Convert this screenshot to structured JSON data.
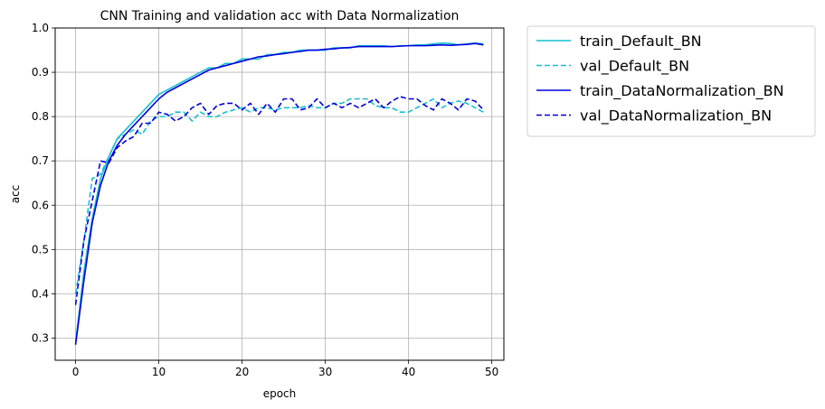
{
  "chart_data": {
    "type": "line",
    "title": "CNN Training and validation acc with Data Normalization",
    "xlabel": "epoch",
    "ylabel": "acc",
    "xlim": [
      -2.45,
      51.45
    ],
    "ylim": [
      0.25,
      1.0
    ],
    "xticks": [
      0,
      10,
      20,
      30,
      40,
      50
    ],
    "yticks": [
      0.3,
      0.4,
      0.5,
      0.6,
      0.7,
      0.8,
      0.9,
      1.0
    ],
    "xtick_labels": [
      "0",
      "10",
      "20",
      "30",
      "40",
      "50"
    ],
    "ytick_labels": [
      "0.3",
      "0.4",
      "0.5",
      "0.6",
      "0.7",
      "0.8",
      "0.9",
      "1.0"
    ],
    "grid": true,
    "legend_placement": "outside-upper-right",
    "x": [
      0,
      1,
      2,
      3,
      4,
      5,
      6,
      7,
      8,
      9,
      10,
      11,
      12,
      13,
      14,
      15,
      16,
      17,
      18,
      19,
      20,
      21,
      22,
      23,
      24,
      25,
      26,
      27,
      28,
      29,
      30,
      31,
      32,
      33,
      34,
      35,
      36,
      37,
      38,
      39,
      40,
      41,
      42,
      43,
      44,
      45,
      46,
      47,
      48,
      49
    ],
    "series": [
      {
        "name": "train_Default_BN",
        "color": "#17becf",
        "dash": "solid",
        "values": [
          0.29,
          0.45,
          0.57,
          0.66,
          0.71,
          0.75,
          0.77,
          0.79,
          0.81,
          0.83,
          0.85,
          0.86,
          0.87,
          0.88,
          0.89,
          0.9,
          0.91,
          0.91,
          0.92,
          0.92,
          0.93,
          0.93,
          0.93,
          0.94,
          0.94,
          0.945,
          0.945,
          0.95,
          0.95,
          0.95,
          0.95,
          0.955,
          0.955,
          0.955,
          0.96,
          0.96,
          0.96,
          0.96,
          0.958,
          0.96,
          0.96,
          0.962,
          0.962,
          0.964,
          0.966,
          0.965,
          0.962,
          0.964,
          0.966,
          0.964
        ]
      },
      {
        "name": "val_Default_BN",
        "color": "#17becf",
        "dash": "dashed",
        "values": [
          0.4,
          0.52,
          0.66,
          0.67,
          0.71,
          0.75,
          0.76,
          0.77,
          0.76,
          0.79,
          0.8,
          0.8,
          0.81,
          0.81,
          0.79,
          0.81,
          0.8,
          0.8,
          0.81,
          0.815,
          0.82,
          0.81,
          0.82,
          0.82,
          0.815,
          0.82,
          0.82,
          0.82,
          0.825,
          0.82,
          0.82,
          0.83,
          0.83,
          0.84,
          0.84,
          0.84,
          0.825,
          0.82,
          0.82,
          0.81,
          0.81,
          0.82,
          0.83,
          0.84,
          0.82,
          0.83,
          0.835,
          0.83,
          0.82,
          0.81
        ]
      },
      {
        "name": "train_DataNormalization_BN",
        "color": "#0000dd",
        "dash": "solid",
        "values": [
          0.285,
          0.43,
          0.56,
          0.645,
          0.7,
          0.735,
          0.76,
          0.78,
          0.8,
          0.82,
          0.84,
          0.855,
          0.865,
          0.875,
          0.885,
          0.895,
          0.905,
          0.91,
          0.915,
          0.92,
          0.925,
          0.93,
          0.935,
          0.937,
          0.94,
          0.942,
          0.945,
          0.947,
          0.95,
          0.95,
          0.952,
          0.953,
          0.955,
          0.956,
          0.958,
          0.958,
          0.958,
          0.958,
          0.958,
          0.959,
          0.96,
          0.96,
          0.96,
          0.961,
          0.962,
          0.961,
          0.962,
          0.963,
          0.965,
          0.962
        ]
      },
      {
        "name": "val_DataNormalization_BN",
        "color": "#0000dd",
        "dash": "dashed",
        "values": [
          0.375,
          0.52,
          0.61,
          0.7,
          0.695,
          0.73,
          0.745,
          0.755,
          0.785,
          0.785,
          0.81,
          0.805,
          0.79,
          0.8,
          0.82,
          0.83,
          0.805,
          0.825,
          0.83,
          0.83,
          0.815,
          0.83,
          0.805,
          0.83,
          0.81,
          0.84,
          0.84,
          0.815,
          0.82,
          0.84,
          0.82,
          0.83,
          0.82,
          0.83,
          0.82,
          0.83,
          0.84,
          0.82,
          0.835,
          0.845,
          0.84,
          0.84,
          0.825,
          0.815,
          0.84,
          0.83,
          0.815,
          0.84,
          0.835,
          0.815
        ]
      }
    ]
  }
}
